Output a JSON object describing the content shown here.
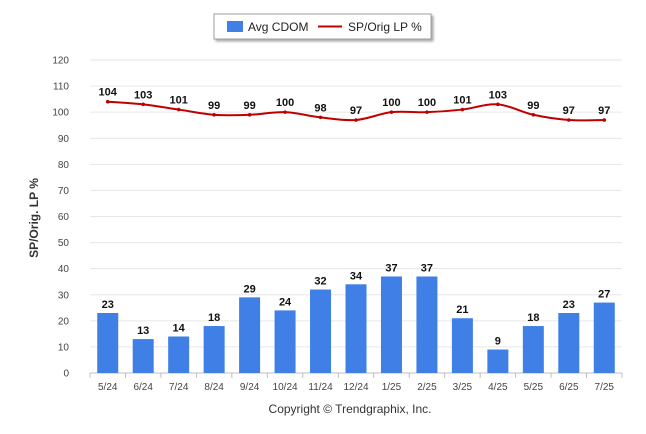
{
  "chart_data": {
    "type": "bar",
    "categories": [
      "5/24",
      "6/24",
      "7/24",
      "8/24",
      "9/24",
      "10/24",
      "11/24",
      "12/24",
      "1/25",
      "2/25",
      "3/25",
      "4/25",
      "5/25",
      "6/25",
      "7/25"
    ],
    "series": [
      {
        "name": "Avg CDOM",
        "kind": "bar",
        "color": "#3f7fe6",
        "values": [
          23,
          13,
          14,
          18,
          29,
          24,
          32,
          34,
          37,
          37,
          21,
          9,
          18,
          23,
          27
        ]
      },
      {
        "name": "SP/Orig LP %",
        "kind": "line",
        "color": "#c00000",
        "values": [
          104,
          103,
          101,
          99,
          99,
          100,
          98,
          97,
          100,
          100,
          101,
          103,
          99,
          97,
          97
        ]
      }
    ],
    "ylabel": "SP/Orig. LP %",
    "xlabel": "",
    "ylim": [
      0,
      120
    ],
    "yticks": [
      0,
      10,
      20,
      30,
      40,
      50,
      60,
      70,
      80,
      90,
      100,
      110,
      120
    ],
    "grid": true,
    "legend_position": "top-center",
    "credit": "Copyright © Trendgraphix, Inc."
  }
}
